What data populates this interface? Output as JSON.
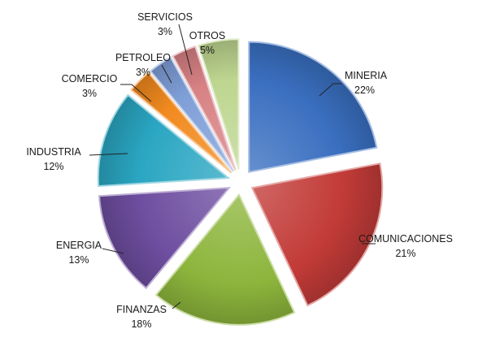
{
  "chart_data": {
    "type": "pie",
    "title": "",
    "exploded": true,
    "legend": "none",
    "slices": [
      {
        "label": "MINERIA",
        "value": 22,
        "value_label": "22%",
        "color": "#3a6fc0"
      },
      {
        "label": "COMUNICACIONES",
        "value": 21,
        "value_label": "21%",
        "color": "#c23b38"
      },
      {
        "label": "FINANZAS",
        "value": 18,
        "value_label": "18%",
        "color": "#8db53c"
      },
      {
        "label": "ENERGIA",
        "value": 13,
        "value_label": "13%",
        "color": "#6e4ea0"
      },
      {
        "label": "INDUSTRIA",
        "value": 12,
        "value_label": "12%",
        "color": "#2aa6c2"
      },
      {
        "label": "COMERCIO",
        "value": 3,
        "value_label": "3%",
        "color": "#f18a1f"
      },
      {
        "label": "PETROLEO",
        "value": 3,
        "value_label": "3%",
        "color": "#7f9fd8"
      },
      {
        "label": "SERVICIOS",
        "value": 3,
        "value_label": "3%",
        "color": "#d88284"
      },
      {
        "label": "OTROS",
        "value": 5,
        "value_label": "5%",
        "color": "#bed690"
      }
    ]
  }
}
